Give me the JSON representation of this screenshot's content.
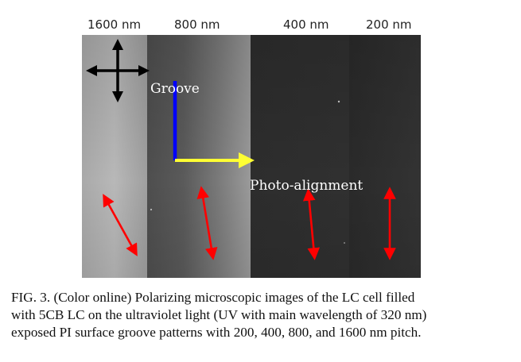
{
  "figure": {
    "pitch_labels": [
      "1600 nm",
      "800 nm",
      "400 nm",
      "200 nm"
    ],
    "annotations": {
      "groove": "Groove",
      "photo_alignment": "Photo-alignment"
    },
    "colors": {
      "groove_axis": "#0000ff",
      "photo_axis": "#ffff33",
      "director_arrows": "#ff0000",
      "polarizer_cross": "#000000"
    },
    "icons": [
      "polarizer-cross-icon",
      "director-arrow-icon"
    ]
  },
  "caption": {
    "lines": [
      "FIG. 3. (Color online) Polarizing microscopic images of the LC cell filled",
      "with 5CB LC on the ultraviolet light (UV with main wavelength of 320 nm)",
      "exposed PI surface groove patterns with 200, 400, 800, and 1600 nm pitch."
    ]
  }
}
